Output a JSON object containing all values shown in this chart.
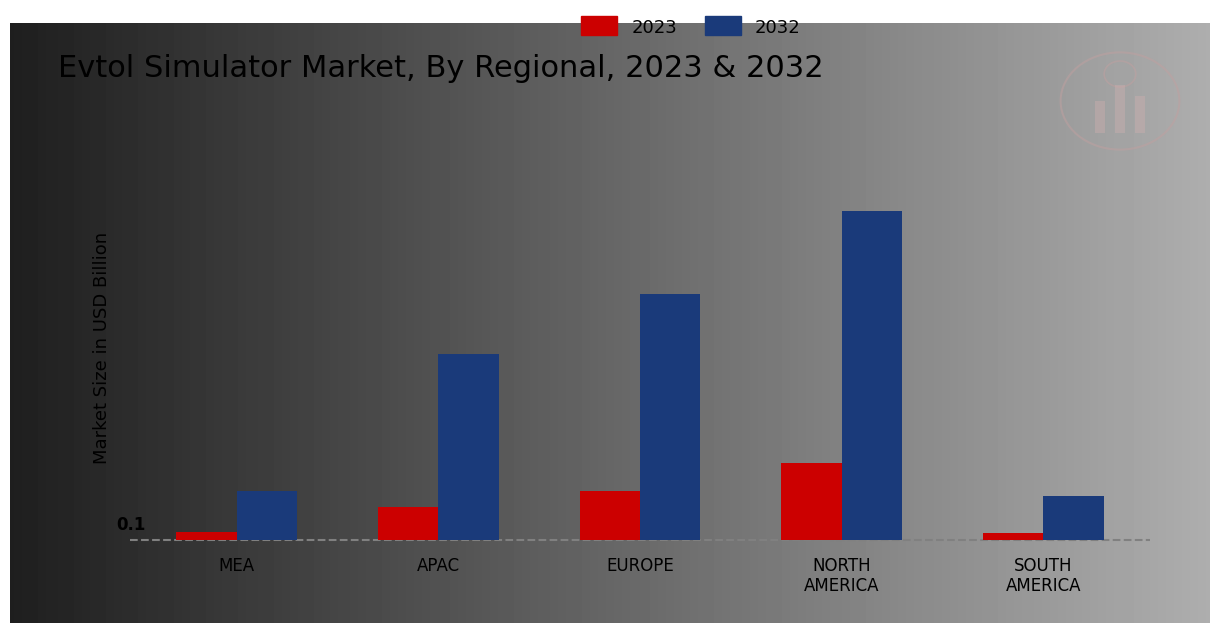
{
  "title": "Evtol Simulator Market, By Regional, 2023 & 2032",
  "ylabel": "Market Size in USD Billion",
  "categories": [
    "MEA",
    "APAC",
    "EUROPE",
    "NORTH\nAMERICA",
    "SOUTH\nAMERICA"
  ],
  "values_2023": [
    0.03,
    0.12,
    0.18,
    0.28,
    0.025
  ],
  "values_2032": [
    0.18,
    0.68,
    0.9,
    1.2,
    0.16
  ],
  "color_2023": "#cc0000",
  "color_2032": "#1a3a7a",
  "annotation_text": "0.1",
  "background_color_light": "#f0f0f0",
  "background_color_dark": "#d0d0d0",
  "legend_labels": [
    "2023",
    "2032"
  ],
  "bar_width": 0.3,
  "ylim": [
    -0.04,
    1.45
  ],
  "dashed_line_y": 0.0,
  "banner_color": "#cc0000",
  "title_fontsize": 22,
  "legend_fontsize": 13,
  "ylabel_fontsize": 13,
  "xtick_fontsize": 12
}
